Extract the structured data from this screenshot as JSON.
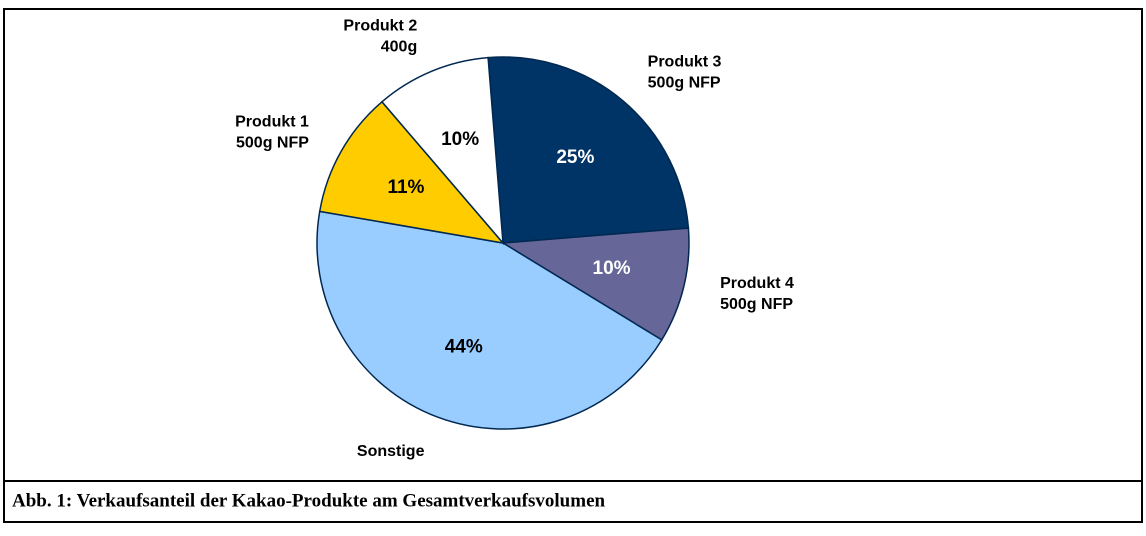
{
  "chart_data": {
    "type": "pie",
    "caption": "Abb. 1: Verkaufsanteil der Kakao-Produkte am Gesamtverkaufsvolumen",
    "categories": [
      "Produkt 3\n500g NFP",
      "Produkt 4\n500g NFP",
      "Sonstige",
      "Produkt 1\n500g NFP",
      "Produkt 2\n400g"
    ],
    "values": [
      25,
      10,
      44,
      11,
      10
    ],
    "value_labels": [
      "25%",
      "10%",
      "44%",
      "11%",
      "10%"
    ],
    "colors": [
      "#003366",
      "#666699",
      "#99ccff",
      "#ffcc00",
      "#ffffff"
    ]
  }
}
